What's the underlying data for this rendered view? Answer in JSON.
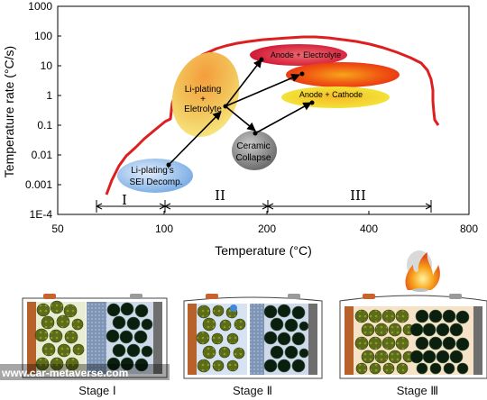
{
  "axes": {
    "y_title": "Temperature rate (°C/s)",
    "x_title": "Temperature (°C)",
    "y_ticks": [
      "1000",
      "100",
      "10",
      "1",
      "0.1",
      "0.01",
      "0.001",
      "1E-4"
    ],
    "x_ticks": [
      "50",
      "100",
      "200",
      "400",
      "800"
    ],
    "y_scale": "log",
    "x_scale": "log"
  },
  "stages": {
    "I": "I",
    "II": "II",
    "III": "III"
  },
  "regions": {
    "sei": "Li-plating's SEI Decomp.",
    "sei_line1": "Li-plating's",
    "sei_line2": "SEI Decomp.",
    "plating_line1": "Li-plating",
    "plating_line2": "+",
    "plating_line3": "Eletrolyte",
    "ceramic_line1": "Ceramic",
    "ceramic_line2": "Collapse",
    "anode_electrolyte": "Anode + Electrolyte",
    "anode_cathode": "Anode + Cathode"
  },
  "captions": {
    "stage1": "Stage Ⅰ",
    "stage2": "Stage Ⅱ",
    "stage3": "Stage Ⅲ"
  },
  "watermark": "www.car-metaverse.com",
  "colors": {
    "curve": "#dd1f1f",
    "sei": "#8fb8e6",
    "plating": "#f3a24a",
    "ceramic": "#8a8a8a",
    "anode_electrolyte": "#d81b3e",
    "unlabeled_region": "#f03a12",
    "anode_cathode": "#f2e41e",
    "anode_particle": "#0b1f0f",
    "cathode_particle": "#5f6e19",
    "current_collector": "#b8612b"
  }
}
